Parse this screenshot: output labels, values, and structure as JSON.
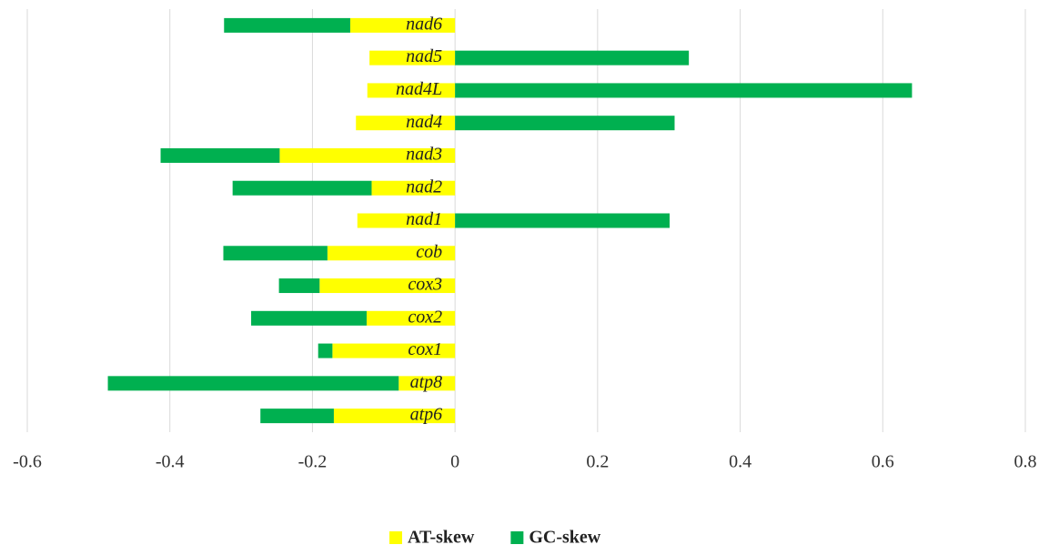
{
  "chart_data": {
    "type": "stacked-barh",
    "categories": [
      "nad6",
      "nad5",
      "nad4L",
      "nad4",
      "nad3",
      "nad2",
      "nad1",
      "cob",
      "cox3",
      "cox2",
      "cox1",
      "atp8",
      "atp6"
    ],
    "series": [
      {
        "name": "AT-skew",
        "color": "#ffff00",
        "values": [
          -0.147,
          -0.12,
          -0.123,
          -0.139,
          -0.246,
          -0.117,
          -0.137,
          -0.179,
          -0.19,
          -0.124,
          -0.172,
          -0.079,
          -0.17
        ]
      },
      {
        "name": "GC-skew",
        "color": "#00b050",
        "values": [
          -0.177,
          0.328,
          0.641,
          0.308,
          -0.167,
          -0.195,
          0.301,
          -0.146,
          -0.057,
          -0.162,
          -0.02,
          -0.408,
          -0.103
        ]
      }
    ],
    "xlim": [
      -0.6,
      0.8
    ],
    "xticks": [
      -0.6,
      -0.4,
      -0.2,
      0,
      0.2,
      0.4,
      0.6,
      0.8
    ],
    "grid": true,
    "legend": "bottom"
  }
}
